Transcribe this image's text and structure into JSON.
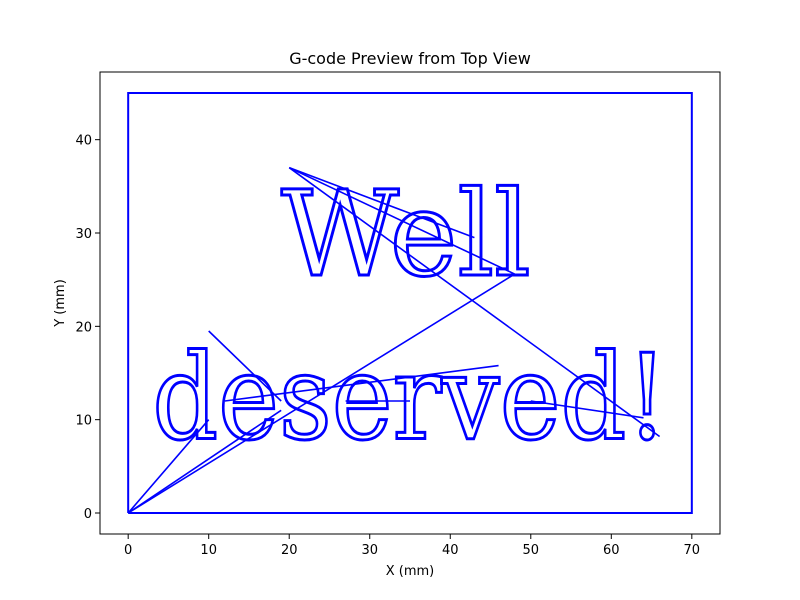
{
  "chart_data": {
    "type": "line",
    "title": "G-code Preview from Top View",
    "xlabel": "X (mm)",
    "ylabel": "Y (mm)",
    "xlim": [
      -3.5,
      73.5
    ],
    "ylim": [
      -2.25,
      47.25
    ],
    "xticks": [
      0,
      10,
      20,
      30,
      40,
      50,
      60,
      70
    ],
    "yticks": [
      0,
      10,
      20,
      30,
      40
    ],
    "grid": false,
    "legend": "none",
    "line_color": "#0000ff",
    "series": [
      {
        "values_desc": "tool path",
        "border": [
          [
            0,
            0
          ],
          [
            70,
            0
          ],
          [
            70,
            45
          ],
          [
            0,
            45
          ],
          [
            0,
            0
          ]
        ],
        "travel_moves": [
          [
            [
              0,
              0
            ],
            [
              48,
              25.6
            ]
          ],
          [
            [
              48,
              25.6
            ],
            [
              20,
              37
            ]
          ],
          [
            [
              20,
              37
            ],
            [
              43,
              29.5
            ]
          ],
          [
            [
              20,
              37
            ],
            [
              66,
              8.2
            ]
          ],
          [
            [
              0,
              0
            ],
            [
              10,
              10
            ]
          ],
          [
            [
              10,
              19.5
            ],
            [
              19,
              12
            ]
          ],
          [
            [
              12,
              12
            ],
            [
              46,
              15.8
            ]
          ],
          [
            [
              27,
              12
            ],
            [
              35,
              12
            ]
          ],
          [
            [
              50,
              12
            ],
            [
              64,
              10.2
            ]
          ],
          [
            [
              0,
              0
            ],
            [
              19,
              11
            ]
          ]
        ]
      }
    ],
    "text_paths": [
      {
        "text": "Well",
        "x": 19,
        "y": 25.5,
        "x_end": 50
      },
      {
        "text": "deserved!",
        "x": 3,
        "y": 8,
        "x_end": 67
      }
    ]
  }
}
